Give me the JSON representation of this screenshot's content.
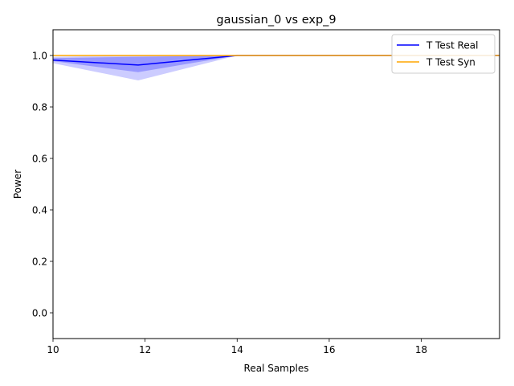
{
  "chart_data": {
    "type": "line",
    "title": "gaussian_0 vs exp_9",
    "xlabel": "Real Samples",
    "ylabel": "Power",
    "xlim": [
      10,
      19.7
    ],
    "ylim": [
      -0.1,
      1.1
    ],
    "xticks": [
      10,
      12,
      14,
      16,
      18
    ],
    "yticks": [
      0.0,
      0.2,
      0.4,
      0.6,
      0.8,
      1.0
    ],
    "xtick_labels": [
      "10",
      "12",
      "14",
      "16",
      "18"
    ],
    "ytick_labels": [
      "0.0",
      "0.2",
      "0.4",
      "0.6",
      "0.8",
      "1.0"
    ],
    "legend_position": "top-right",
    "grid": false,
    "series": [
      {
        "name": "T Test Real",
        "color": "#0000ff",
        "x": [
          10,
          11.85,
          14,
          19.7
        ],
        "y": [
          0.982,
          0.963,
          1.0,
          1.0
        ],
        "bands": [
          {
            "lower": [
              0.978,
              0.935,
              1.0,
              1.0
            ],
            "upper": [
              0.99,
              0.995,
              1.0,
              1.0
            ],
            "opacity": 0.25
          },
          {
            "lower": [
              0.97,
              0.903,
              1.0,
              1.0
            ],
            "upper": [
              0.995,
              1.0,
              1.0,
              1.0
            ],
            "opacity": 0.2
          }
        ]
      },
      {
        "name": "T Test Syn",
        "color": "#ffa500",
        "x": [
          10,
          19.7
        ],
        "y": [
          1.0,
          1.0
        ]
      }
    ]
  }
}
